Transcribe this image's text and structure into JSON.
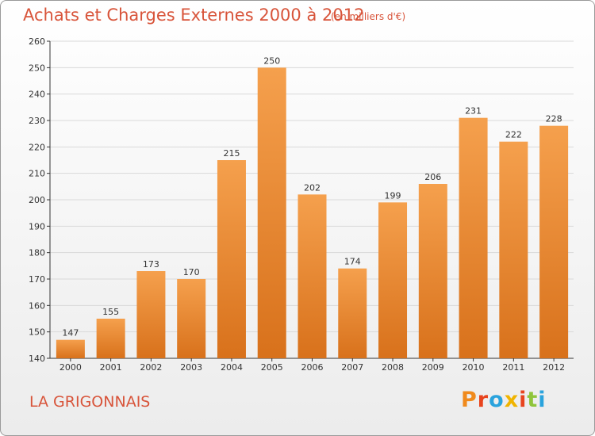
{
  "header": {
    "title": "Achats et Charges Externes 2000 à 2012",
    "subtitle": "(en milliers d'€)"
  },
  "footer": {
    "place": "LA GRIGONNAIS",
    "logo_text": "Proxiti",
    "logo_colors": [
      "#f08a1c",
      "#e8441e",
      "#2aa3dd",
      "#f0b400",
      "#e8441e",
      "#8fc53b",
      "#2aa3dd"
    ]
  },
  "colors": {
    "bar_top": "#f5a04d",
    "bar_bottom": "#d8711b",
    "text": "#d8543a",
    "grid": "#d9d9d9",
    "axis": "#333333"
  },
  "chart_data": {
    "type": "bar",
    "title": "Achats et Charges Externes 2000 à 2012",
    "subtitle": "(en milliers d'€)",
    "categories": [
      "2000",
      "2001",
      "2002",
      "2003",
      "2004",
      "2005",
      "2006",
      "2007",
      "2008",
      "2009",
      "2010",
      "2011",
      "2012"
    ],
    "values": [
      147,
      155,
      173,
      170,
      215,
      250,
      202,
      174,
      199,
      206,
      231,
      222,
      228
    ],
    "ylim": [
      140,
      260
    ],
    "yticks": [
      140,
      150,
      160,
      170,
      180,
      190,
      200,
      210,
      220,
      230,
      240,
      250,
      260
    ],
    "grid": true,
    "legend": "none",
    "data_labels": true
  }
}
